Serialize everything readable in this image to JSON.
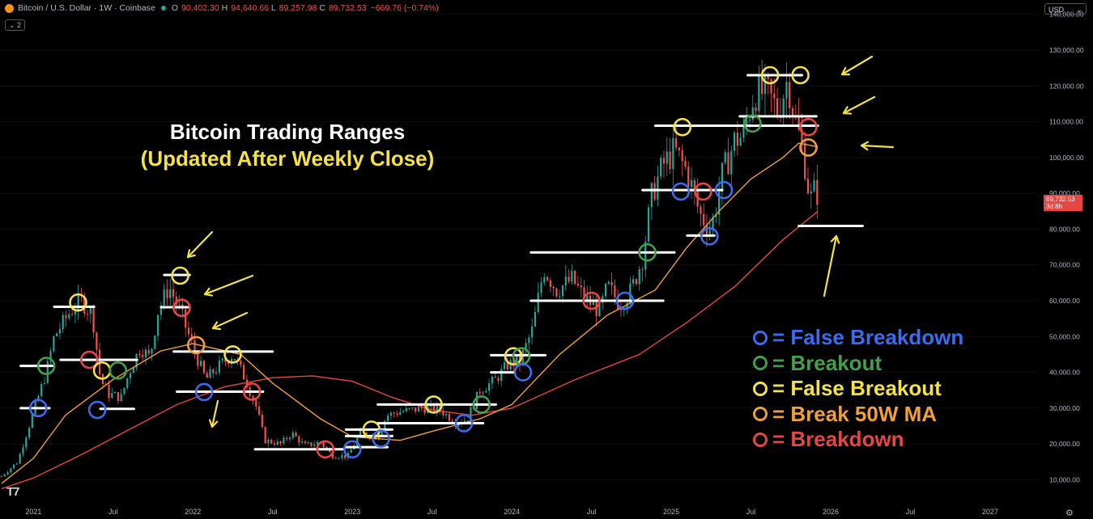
{
  "header": {
    "symbol": "Bitcoin / U.S. Dollar · 1W · Coinbase",
    "open_label": "O",
    "open": "90,402.30",
    "high_label": "H",
    "high": "94,640.66",
    "low_label": "L",
    "low": "89,257.98",
    "close_label": "C",
    "close": "89,732.53",
    "change": "−669.76 (−0.74%)",
    "collapse_badge": "⌄ 2",
    "currency": "USD"
  },
  "annotations": {
    "title_line1": "Bitcoin Trading Ranges",
    "title_line2": "(Updated After Weekly Close)"
  },
  "legend": [
    {
      "label": "= False Breakdown",
      "color": "#3b6cf0"
    },
    {
      "label": "= Breakout",
      "color": "#43a04a"
    },
    {
      "label": "= False Breakout",
      "color": "#f3e14b"
    },
    {
      "label": "= Break 50W MA",
      "color": "#f0a03a"
    },
    {
      "label": "= Breakdown",
      "color": "#e84545"
    }
  ],
  "price_tag": {
    "price": "89,732.53",
    "countdown": "3d 8h"
  },
  "colors": {
    "up": "#26a69a",
    "down": "#ef5350",
    "ma50": "#f0a03a",
    "ma200": "#e84545",
    "level": "#ffffff",
    "arrow": "#f3e14b"
  },
  "chart_data": {
    "type": "candlestick",
    "xlabel": "",
    "ylabel": "",
    "ylim": [
      4000,
      144000
    ],
    "y_ticks": [
      10000,
      20000,
      30000,
      40000,
      50000,
      60000,
      70000,
      80000,
      90000,
      100000,
      110000,
      120000,
      130000,
      140000
    ],
    "y_tick_labels": [
      "10,000.00",
      "20,000.00",
      "30,000.00",
      "40,000.00",
      "50,000.00",
      "60,000.00",
      "70,000.00",
      "80,000.00",
      "90,000.00",
      "100,000.00",
      "110,000.00",
      "120,000.00",
      "130,000.00",
      "140,000.00"
    ],
    "x_ticks": [
      {
        "label": "2021",
        "t": 2021.0
      },
      {
        "label": "Jul",
        "t": 2021.5
      },
      {
        "label": "2022",
        "t": 2022.0
      },
      {
        "label": "Jul",
        "t": 2022.5
      },
      {
        "label": "2023",
        "t": 2023.0
      },
      {
        "label": "Jul",
        "t": 2023.5
      },
      {
        "label": "2024",
        "t": 2024.0
      },
      {
        "label": "Jul",
        "t": 2024.5
      },
      {
        "label": "2025",
        "t": 2025.0
      },
      {
        "label": "Jul",
        "t": 2025.5
      },
      {
        "label": "2026",
        "t": 2026.0
      },
      {
        "label": "Jul",
        "t": 2026.5
      },
      {
        "label": "2027",
        "t": 2027.0
      }
    ],
    "xlim": [
      2020.79,
      2027.3
    ],
    "price_path": [
      [
        2020.8,
        11000
      ],
      [
        2020.9,
        15000
      ],
      [
        2021.0,
        29000
      ],
      [
        2021.08,
        40000
      ],
      [
        2021.13,
        50000
      ],
      [
        2021.23,
        57000
      ],
      [
        2021.3,
        60000
      ],
      [
        2021.37,
        56000
      ],
      [
        2021.42,
        38000
      ],
      [
        2021.47,
        34000
      ],
      [
        2021.55,
        33000
      ],
      [
        2021.6,
        40000
      ],
      [
        2021.67,
        47000
      ],
      [
        2021.73,
        44000
      ],
      [
        2021.78,
        57000
      ],
      [
        2021.85,
        64000
      ],
      [
        2021.92,
        57000
      ],
      [
        2022.0,
        47000
      ],
      [
        2022.08,
        38000
      ],
      [
        2022.17,
        42000
      ],
      [
        2022.25,
        45000
      ],
      [
        2022.33,
        38000
      ],
      [
        2022.4,
        30000
      ],
      [
        2022.45,
        21000
      ],
      [
        2022.55,
        20000
      ],
      [
        2022.62,
        23000
      ],
      [
        2022.7,
        19500
      ],
      [
        2022.8,
        20500
      ],
      [
        2022.87,
        16800
      ],
      [
        2022.97,
        16500
      ],
      [
        2023.05,
        23000
      ],
      [
        2023.15,
        22000
      ],
      [
        2023.22,
        28000
      ],
      [
        2023.3,
        29000
      ],
      [
        2023.45,
        30000
      ],
      [
        2023.55,
        29500
      ],
      [
        2023.65,
        26000
      ],
      [
        2023.72,
        27000
      ],
      [
        2023.8,
        35000
      ],
      [
        2023.9,
        38000
      ],
      [
        2023.97,
        42000
      ],
      [
        2024.05,
        43000
      ],
      [
        2024.13,
        52000
      ],
      [
        2024.2,
        69000
      ],
      [
        2024.28,
        63000
      ],
      [
        2024.38,
        66000
      ],
      [
        2024.45,
        61000
      ],
      [
        2024.55,
        57000
      ],
      [
        2024.6,
        64000
      ],
      [
        2024.68,
        59000
      ],
      [
        2024.75,
        63000
      ],
      [
        2024.82,
        72000
      ],
      [
        2024.88,
        90000
      ],
      [
        2024.95,
        98000
      ],
      [
        2025.02,
        102000
      ],
      [
        2025.1,
        96000
      ],
      [
        2025.18,
        84000
      ],
      [
        2025.25,
        80000
      ],
      [
        2025.32,
        95000
      ],
      [
        2025.4,
        105000
      ],
      [
        2025.45,
        106000
      ],
      [
        2025.52,
        118000
      ],
      [
        2025.6,
        118000
      ],
      [
        2025.67,
        113000
      ],
      [
        2025.73,
        122000
      ],
      [
        2025.78,
        110000
      ],
      [
        2025.83,
        101000
      ],
      [
        2025.87,
        88000
      ],
      [
        2025.9,
        91000
      ],
      [
        2025.92,
        89733
      ]
    ],
    "ma50_path": [
      [
        2020.8,
        9000
      ],
      [
        2021.0,
        16000
      ],
      [
        2021.2,
        28000
      ],
      [
        2021.5,
        38000
      ],
      [
        2021.8,
        46000
      ],
      [
        2022.0,
        48000
      ],
      [
        2022.3,
        45000
      ],
      [
        2022.5,
        37000
      ],
      [
        2022.8,
        27000
      ],
      [
        2023.0,
        22000
      ],
      [
        2023.3,
        21000
      ],
      [
        2023.5,
        23500
      ],
      [
        2023.8,
        27000
      ],
      [
        2024.0,
        31000
      ],
      [
        2024.3,
        45000
      ],
      [
        2024.6,
        56000
      ],
      [
        2024.9,
        63000
      ],
      [
        2025.1,
        75000
      ],
      [
        2025.3,
        85000
      ],
      [
        2025.5,
        94000
      ],
      [
        2025.7,
        100000
      ],
      [
        2025.8,
        104000
      ],
      [
        2025.92,
        103000
      ]
    ],
    "ma200_path": [
      [
        2020.8,
        7500
      ],
      [
        2021.0,
        10500
      ],
      [
        2021.3,
        17000
      ],
      [
        2021.6,
        24000
      ],
      [
        2021.9,
        31000
      ],
      [
        2022.2,
        36000
      ],
      [
        2022.5,
        38500
      ],
      [
        2022.75,
        39000
      ],
      [
        2023.0,
        37500
      ],
      [
        2023.25,
        33000
      ],
      [
        2023.5,
        29500
      ],
      [
        2023.75,
        28000
      ],
      [
        2024.0,
        30000
      ],
      [
        2024.4,
        38000
      ],
      [
        2024.8,
        45000
      ],
      [
        2025.1,
        54000
      ],
      [
        2025.4,
        64000
      ],
      [
        2025.7,
        77000
      ],
      [
        2025.92,
        85000
      ]
    ],
    "levels": [
      {
        "price": 30000,
        "t0": 2020.92,
        "t1": 2021.1
      },
      {
        "price": 41800,
        "t0": 2020.92,
        "t1": 2021.12
      },
      {
        "price": 58300,
        "t0": 2021.13,
        "t1": 2021.38
      },
      {
        "price": 43500,
        "t0": 2021.17,
        "t1": 2021.65
      },
      {
        "price": 29800,
        "t0": 2021.42,
        "t1": 2021.63
      },
      {
        "price": 67200,
        "t0": 2021.82,
        "t1": 2021.98
      },
      {
        "price": 58200,
        "t0": 2021.8,
        "t1": 2021.98
      },
      {
        "price": 45800,
        "t0": 2021.88,
        "t1": 2022.5
      },
      {
        "price": 34600,
        "t0": 2021.9,
        "t1": 2022.44
      },
      {
        "price": 18500,
        "t0": 2022.39,
        "t1": 2022.95
      },
      {
        "price": 19100,
        "t0": 2022.96,
        "t1": 2023.22
      },
      {
        "price": 22200,
        "t0": 2022.96,
        "t1": 2023.25
      },
      {
        "price": 24000,
        "t0": 2022.96,
        "t1": 2023.25
      },
      {
        "price": 25800,
        "t0": 2023.16,
        "t1": 2023.82
      },
      {
        "price": 31000,
        "t0": 2023.16,
        "t1": 2023.9
      },
      {
        "price": 40000,
        "t0": 2023.87,
        "t1": 2024.01
      },
      {
        "price": 44800,
        "t0": 2023.87,
        "t1": 2024.21
      },
      {
        "price": 60000,
        "t0": 2024.12,
        "t1": 2024.95
      },
      {
        "price": 73500,
        "t0": 2024.12,
        "t1": 2025.02
      },
      {
        "price": 90900,
        "t0": 2024.82,
        "t1": 2025.32
      },
      {
        "price": 78200,
        "t0": 2025.1,
        "t1": 2025.27
      },
      {
        "price": 108900,
        "t0": 2024.9,
        "t1": 2025.92
      },
      {
        "price": 111500,
        "t0": 2025.43,
        "t1": 2025.91
      },
      {
        "price": 123000,
        "t0": 2025.48,
        "t1": 2025.82
      },
      {
        "price": 80900,
        "t0": 2025.8,
        "t1": 2026.2
      }
    ],
    "markers": [
      {
        "t": 2021.03,
        "price": 30000,
        "type": "false_breakdown"
      },
      {
        "t": 2021.08,
        "price": 41800,
        "type": "breakout"
      },
      {
        "t": 2021.28,
        "price": 59500,
        "type": "false_breakout"
      },
      {
        "t": 2021.35,
        "price": 43500,
        "type": "breakdown"
      },
      {
        "t": 2021.4,
        "price": 29500,
        "type": "false_breakdown"
      },
      {
        "t": 2021.43,
        "price": 40500,
        "type": "false_breakout"
      },
      {
        "t": 2021.53,
        "price": 40500,
        "type": "breakout"
      },
      {
        "t": 2021.92,
        "price": 67000,
        "type": "false_breakout"
      },
      {
        "t": 2021.93,
        "price": 58000,
        "type": "breakdown"
      },
      {
        "t": 2022.02,
        "price": 47600,
        "type": "break_50w_ma"
      },
      {
        "t": 2022.07,
        "price": 34500,
        "type": "false_breakdown"
      },
      {
        "t": 2022.25,
        "price": 45000,
        "type": "false_breakout"
      },
      {
        "t": 2022.37,
        "price": 34600,
        "type": "breakdown"
      },
      {
        "t": 2022.83,
        "price": 18500,
        "type": "breakdown"
      },
      {
        "t": 2023.0,
        "price": 18500,
        "type": "false_breakdown"
      },
      {
        "t": 2023.12,
        "price": 24000,
        "type": "false_breakout"
      },
      {
        "t": 2023.18,
        "price": 21500,
        "type": "false_breakdown"
      },
      {
        "t": 2023.51,
        "price": 31000,
        "type": "false_breakout"
      },
      {
        "t": 2023.7,
        "price": 25800,
        "type": "false_breakdown"
      },
      {
        "t": 2023.81,
        "price": 31000,
        "type": "breakout"
      },
      {
        "t": 2024.01,
        "price": 44500,
        "type": "false_breakout"
      },
      {
        "t": 2024.06,
        "price": 44500,
        "type": "breakout"
      },
      {
        "t": 2024.07,
        "price": 40000,
        "type": "false_breakdown"
      },
      {
        "t": 2024.5,
        "price": 60000,
        "type": "breakdown"
      },
      {
        "t": 2024.71,
        "price": 60000,
        "type": "false_breakdown"
      },
      {
        "t": 2024.85,
        "price": 73500,
        "type": "breakout"
      },
      {
        "t": 2025.06,
        "price": 90500,
        "type": "false_breakdown"
      },
      {
        "t": 2025.2,
        "price": 90500,
        "type": "breakdown"
      },
      {
        "t": 2025.33,
        "price": 90900,
        "type": "false_breakdown"
      },
      {
        "t": 2025.24,
        "price": 78000,
        "type": "false_breakdown"
      },
      {
        "t": 2025.07,
        "price": 108500,
        "type": "false_breakout"
      },
      {
        "t": 2025.51,
        "price": 109500,
        "type": "breakout"
      },
      {
        "t": 2025.62,
        "price": 123000,
        "type": "false_breakout"
      },
      {
        "t": 2025.81,
        "price": 123000,
        "type": "false_breakout"
      },
      {
        "t": 2025.86,
        "price": 108500,
        "type": "breakdown"
      },
      {
        "t": 2025.86,
        "price": 102800,
        "type": "break_50w_ma"
      }
    ]
  }
}
